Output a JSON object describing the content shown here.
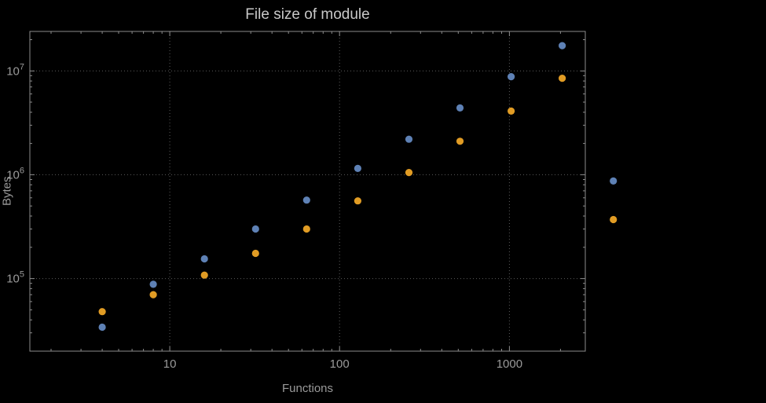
{
  "chart_data": {
    "type": "scatter",
    "title": "File size of module",
    "xlabel": "Functions",
    "ylabel": "Bytes",
    "x_scale": "log",
    "y_scale": "log",
    "xlim": [
      1.5,
      2800
    ],
    "ylim": [
      20000,
      24000000
    ],
    "grid": "dotted",
    "x_ticks": [
      {
        "value": 10,
        "label": "10"
      },
      {
        "value": 100,
        "label": "100"
      },
      {
        "value": 1000,
        "label": "1000"
      }
    ],
    "y_ticks": [
      {
        "value": 100000,
        "base": "10",
        "exponent": "5"
      },
      {
        "value": 1000000,
        "base": "10",
        "exponent": "6"
      },
      {
        "value": 10000000,
        "base": "10",
        "exponent": "7"
      }
    ],
    "x": [
      4,
      8,
      16,
      32,
      64,
      128,
      256,
      512,
      1024,
      2048,
      4096
    ],
    "series": [
      {
        "name": "blue-series",
        "color": "#5E81B5",
        "values": [
          34000,
          88000,
          155000,
          300000,
          570000,
          1150000,
          2200000,
          4400000,
          8800000,
          17500000,
          870000
        ]
      },
      {
        "name": "orange-series",
        "color": "#E19C24",
        "values": [
          48000,
          70000,
          108000,
          175000,
          300000,
          560000,
          1050000,
          2100000,
          4100000,
          8500000,
          370000
        ]
      }
    ]
  },
  "colors": {
    "background": "#000000",
    "frame": "#8c8c8c",
    "grid": "#5c5c5c",
    "tick_text": "#9a9a9a",
    "title_text": "#c8c8c8",
    "axis_label_text": "#9a9a9a"
  }
}
